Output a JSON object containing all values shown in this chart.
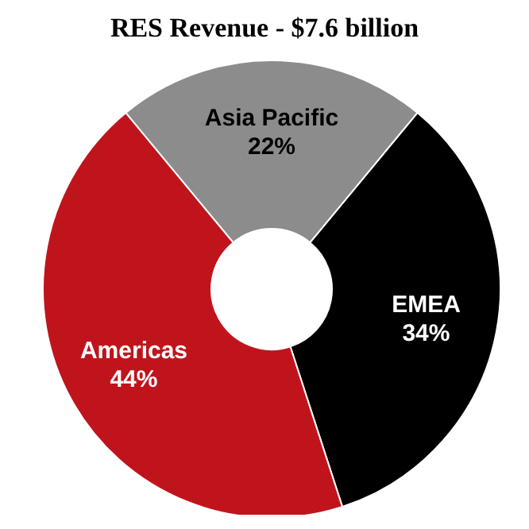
{
  "chart_data": {
    "type": "donut",
    "title": "RES Revenue - $7.6 billion",
    "categories": [
      "Asia Pacific",
      "EMEA",
      "Americas"
    ],
    "values": [
      22,
      34,
      44
    ],
    "colors": [
      "#8c8c8c",
      "#000000",
      "#c0141c"
    ],
    "value_labels": [
      "22%",
      "34%",
      "44%"
    ]
  }
}
